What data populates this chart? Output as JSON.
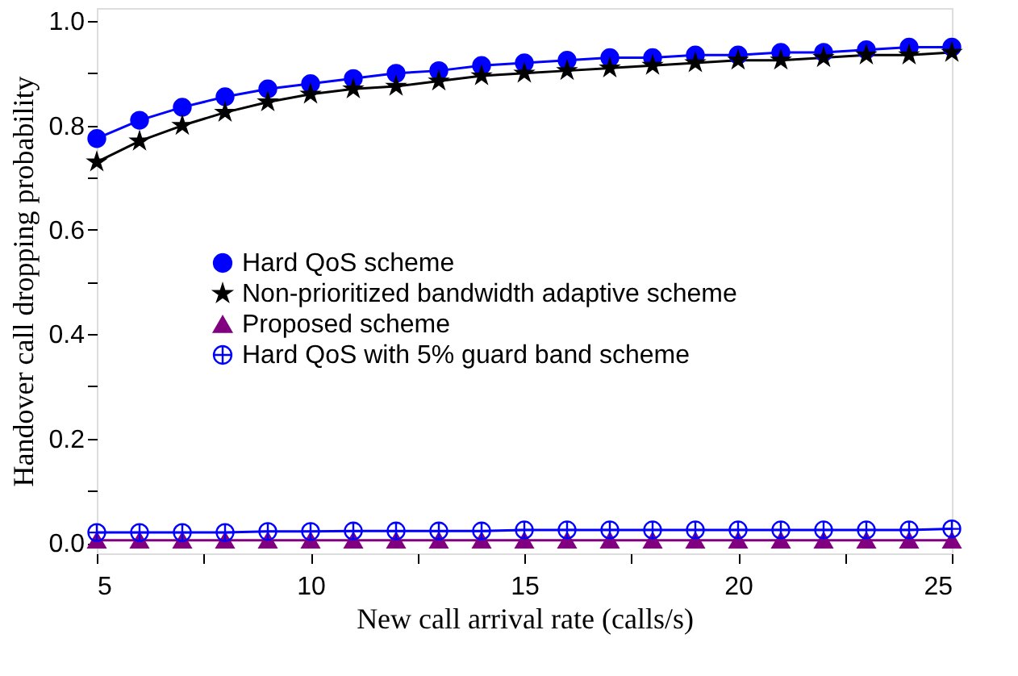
{
  "chart_data": {
    "type": "line",
    "xlabel": "New call arrival rate (calls/s)",
    "ylabel": "Handover call dropping probability",
    "x": [
      5,
      6,
      7,
      8,
      9,
      10,
      11,
      12,
      13,
      14,
      15,
      16,
      17,
      18,
      19,
      20,
      21,
      22,
      23,
      24,
      25
    ],
    "series": [
      {
        "name": "Hard QoS scheme",
        "color": "#0000ff",
        "marker": "circle",
        "values": [
          0.775,
          0.81,
          0.835,
          0.855,
          0.87,
          0.88,
          0.89,
          0.9,
          0.905,
          0.915,
          0.92,
          0.925,
          0.93,
          0.93,
          0.935,
          0.935,
          0.94,
          0.94,
          0.945,
          0.95,
          0.95
        ]
      },
      {
        "name": "Non-prioritized bandwidth adaptive scheme",
        "color": "#000000",
        "marker": "star",
        "values": [
          0.73,
          0.77,
          0.8,
          0.825,
          0.845,
          0.86,
          0.87,
          0.875,
          0.885,
          0.895,
          0.9,
          0.905,
          0.91,
          0.915,
          0.92,
          0.925,
          0.925,
          0.93,
          0.935,
          0.935,
          0.94
        ]
      },
      {
        "name": "Proposed scheme",
        "color": "#800080",
        "marker": "triangle",
        "values": [
          0.005,
          0.005,
          0.005,
          0.005,
          0.005,
          0.005,
          0.005,
          0.005,
          0.005,
          0.005,
          0.005,
          0.005,
          0.005,
          0.005,
          0.005,
          0.005,
          0.005,
          0.005,
          0.005,
          0.005,
          0.005
        ]
      },
      {
        "name": "Hard QoS with 5% guard band scheme",
        "color": "#0000ff",
        "marker": "cross",
        "values": [
          0.02,
          0.02,
          0.02,
          0.02,
          0.022,
          0.022,
          0.023,
          0.023,
          0.023,
          0.023,
          0.025,
          0.025,
          0.025,
          0.025,
          0.025,
          0.025,
          0.025,
          0.025,
          0.025,
          0.025,
          0.027
        ]
      }
    ],
    "xlim": [
      5,
      25
    ],
    "xticks": [
      5,
      {
        "value": 7.5,
        "label": null
      },
      10,
      {
        "value": 12.5,
        "label": null
      },
      15,
      {
        "value": 17.5,
        "label": null
      },
      20,
      {
        "value": 22.5,
        "label": null
      },
      25
    ],
    "ylim": [
      -0.02,
      1.025
    ],
    "yticks": [
      {
        "value": 0,
        "label": "0.0"
      },
      {
        "value": 0.1,
        "label": null
      },
      {
        "value": 0.2,
        "label": "0.2"
      },
      {
        "value": 0.3,
        "label": null
      },
      {
        "value": 0.4,
        "label": "0.4"
      },
      {
        "value": 0.5,
        "label": null
      },
      {
        "value": 0.6,
        "label": "0.6"
      },
      {
        "value": 0.7,
        "label": null
      },
      {
        "value": 0.8,
        "label": "0.8"
      },
      {
        "value": 0.9,
        "label": null
      },
      {
        "value": 1.0,
        "label": "1.0"
      }
    ],
    "grid": false,
    "legend": "left"
  }
}
